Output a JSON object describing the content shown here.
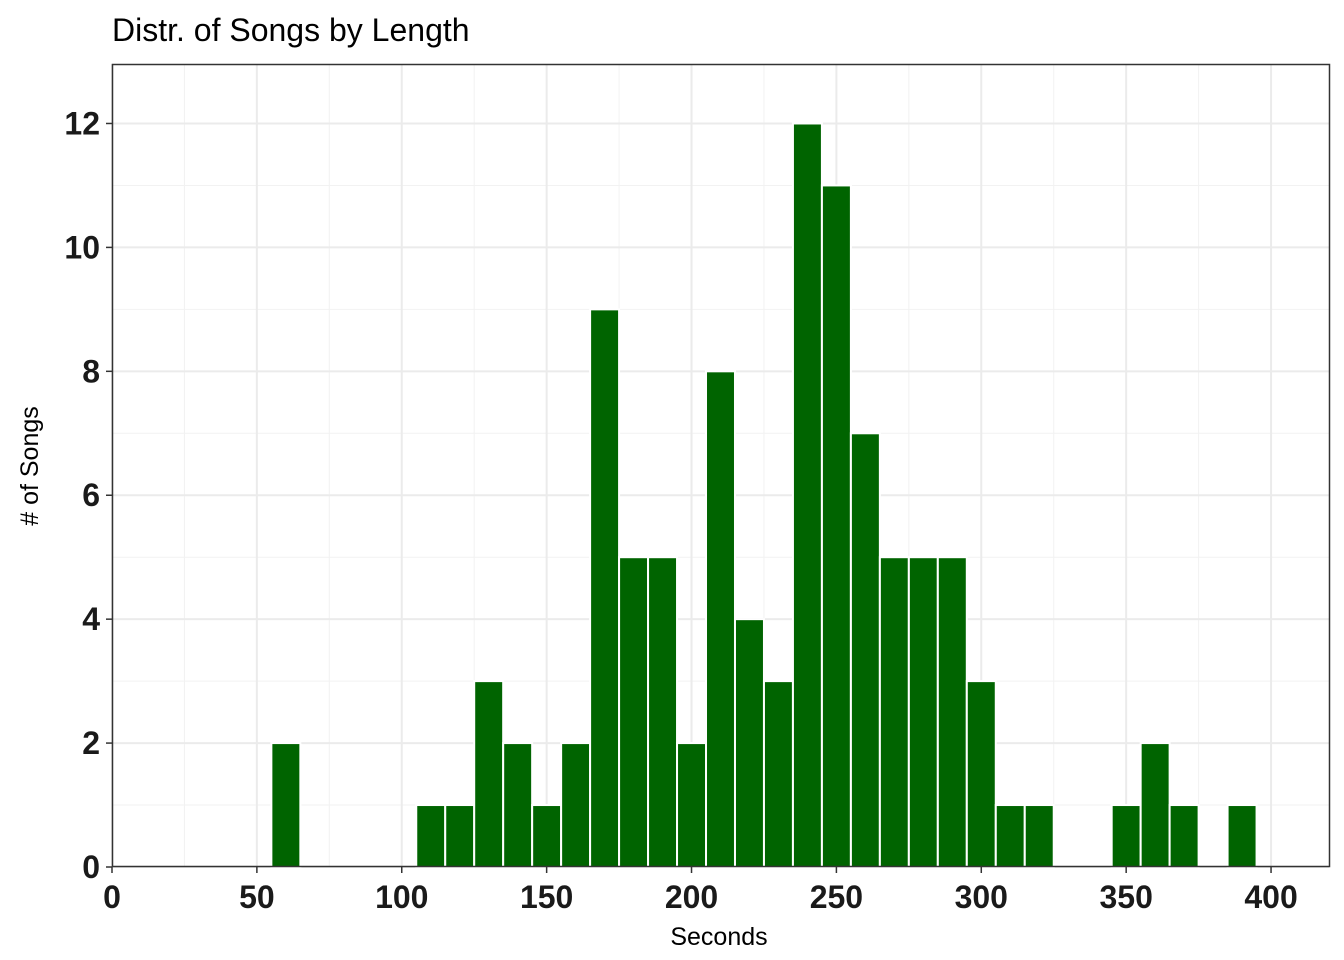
{
  "chart_data": {
    "type": "bar",
    "title": "Distr. of Songs by Length",
    "xlabel": "Seconds",
    "ylabel": "# of Songs",
    "xlim": [
      0,
      420
    ],
    "ylim": [
      0,
      12.96
    ],
    "x_ticks": [
      0,
      50,
      100,
      150,
      200,
      250,
      300,
      350,
      400
    ],
    "y_ticks": [
      0,
      2,
      4,
      6,
      8,
      10,
      12
    ],
    "bin_width": 10,
    "bar_color": "#006400",
    "grid": true,
    "bins": [
      {
        "x": 60,
        "count": 2
      },
      {
        "x": 110,
        "count": 1
      },
      {
        "x": 120,
        "count": 1
      },
      {
        "x": 130,
        "count": 3
      },
      {
        "x": 140,
        "count": 2
      },
      {
        "x": 150,
        "count": 1
      },
      {
        "x": 160,
        "count": 2
      },
      {
        "x": 170,
        "count": 9
      },
      {
        "x": 180,
        "count": 5
      },
      {
        "x": 190,
        "count": 5
      },
      {
        "x": 200,
        "count": 2
      },
      {
        "x": 210,
        "count": 8
      },
      {
        "x": 220,
        "count": 4
      },
      {
        "x": 230,
        "count": 3
      },
      {
        "x": 240,
        "count": 12
      },
      {
        "x": 250,
        "count": 11
      },
      {
        "x": 260,
        "count": 7
      },
      {
        "x": 270,
        "count": 5
      },
      {
        "x": 280,
        "count": 5
      },
      {
        "x": 290,
        "count": 5
      },
      {
        "x": 300,
        "count": 3
      },
      {
        "x": 310,
        "count": 1
      },
      {
        "x": 320,
        "count": 1
      },
      {
        "x": 350,
        "count": 1
      },
      {
        "x": 360,
        "count": 2
      },
      {
        "x": 370,
        "count": 1
      },
      {
        "x": 390,
        "count": 1
      }
    ]
  }
}
